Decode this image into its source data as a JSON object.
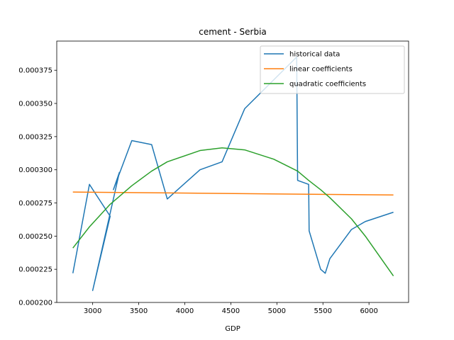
{
  "chart_data": {
    "type": "line",
    "title": "cement - Serbia",
    "xlabel": "GDP",
    "ylabel": "",
    "xlim": [
      2610,
      6430
    ],
    "ylim": [
      0.0002,
      0.000397
    ],
    "x_ticks": [
      3000,
      3500,
      4000,
      4500,
      5000,
      5500,
      6000
    ],
    "x_tick_labels": [
      "3000",
      "3500",
      "4000",
      "4500",
      "5000",
      "5500",
      "6000"
    ],
    "y_ticks": [
      0.0002,
      0.000225,
      0.00025,
      0.000275,
      0.0003,
      0.000325,
      0.00035,
      0.000375
    ],
    "y_tick_labels": [
      "0.000200",
      "0.000225",
      "0.000250",
      "0.000275",
      "0.000300",
      "0.000325",
      "0.000350",
      "0.000375"
    ],
    "grid": false,
    "legend_position": "top-right",
    "series": [
      {
        "name": "historical data",
        "color": "#1f77b4",
        "points": [
          [
            2785,
            0.000222
          ],
          [
            2965,
            0.000289
          ],
          [
            3190,
            0.000265
          ],
          [
            3000,
            0.000209
          ],
          [
            3290,
            0.000298
          ],
          [
            3225,
            0.000285
          ],
          [
            3425,
            0.000322
          ],
          [
            3640,
            0.000319
          ],
          [
            3810,
            0.000278
          ],
          [
            4165,
            0.0003
          ],
          [
            4405,
            0.000306
          ],
          [
            4650,
            0.000346
          ],
          [
            5215,
            0.000385
          ],
          [
            5225,
            0.000292
          ],
          [
            5345,
            0.000289
          ],
          [
            5350,
            0.000254
          ],
          [
            5475,
            0.000225
          ],
          [
            5525,
            0.000222
          ],
          [
            5575,
            0.000233
          ],
          [
            5810,
            0.000255
          ],
          [
            5960,
            0.000261
          ],
          [
            6265,
            0.000268
          ]
        ]
      },
      {
        "name": "linear coefficients",
        "color": "#ff7f0e",
        "points": [
          [
            2785,
            0.0002832
          ],
          [
            6265,
            0.000281
          ]
        ]
      },
      {
        "name": "quadratic coefficients",
        "color": "#2ca02c",
        "points": [
          [
            2785,
            0.000241
          ],
          [
            2965,
            0.000257
          ],
          [
            3190,
            0.000274
          ],
          [
            3425,
            0.000288
          ],
          [
            3640,
            0.000299
          ],
          [
            3810,
            0.000306
          ],
          [
            4165,
            0.0003145
          ],
          [
            4405,
            0.0003165
          ],
          [
            4650,
            0.000315
          ],
          [
            4965,
            0.000308
          ],
          [
            5225,
            0.000299
          ],
          [
            5345,
            0.000292
          ],
          [
            5475,
            0.000285
          ],
          [
            5575,
            0.000279
          ],
          [
            5810,
            0.000263
          ],
          [
            5960,
            0.00025
          ],
          [
            6265,
            0.00022
          ]
        ]
      }
    ]
  }
}
